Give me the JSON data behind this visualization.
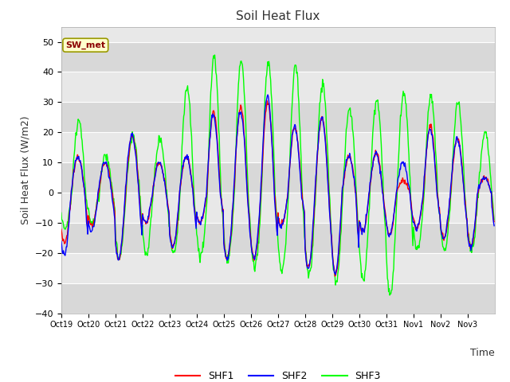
{
  "title": "Soil Heat Flux",
  "ylabel": "Soil Heat Flux (W/m2)",
  "xlabel": "Time",
  "ylim": [
    -40,
    55
  ],
  "yticks": [
    -40,
    -30,
    -20,
    -10,
    0,
    10,
    20,
    30,
    40,
    50
  ],
  "background_color": "#ffffff",
  "plot_bg_color": "#e8e8e8",
  "grid_color": "white",
  "line_colors": {
    "SHF1": "#ff0000",
    "SHF2": "#0000ff",
    "SHF3": "#00ff00"
  },
  "legend_label": "SW_met",
  "xtick_labels": [
    "Oct 19",
    "Oct 20",
    "Oct 21",
    "Oct 22",
    "Oct 23",
    "Oct 24",
    "Oct 25",
    "Oct 26",
    "Oct 27",
    "Oct 28",
    "Oct 29",
    "Oct 30",
    "Oct 31",
    "Nov 1",
    "Nov 2",
    "Nov 3"
  ],
  "n_days": 16,
  "periods_per_day": 48,
  "shf1_amps": [
    12,
    10,
    19,
    10,
    12,
    27,
    28,
    30,
    22,
    25,
    12,
    13,
    4,
    22,
    18,
    5
  ],
  "shf2_amps": [
    12,
    10,
    19,
    10,
    12,
    26,
    27,
    32,
    22,
    25,
    12,
    13,
    10,
    21,
    18,
    5
  ],
  "shf3_amps": [
    24,
    12,
    19,
    18,
    35,
    45,
    44,
    43,
    42,
    36,
    28,
    31,
    33,
    32,
    30,
    20
  ],
  "shf1_night": [
    17,
    11,
    22,
    10,
    18,
    10,
    22,
    22,
    11,
    25,
    27,
    13,
    14,
    12,
    15,
    18
  ],
  "shf2_night": [
    21,
    13,
    22,
    10,
    18,
    10,
    22,
    22,
    11,
    25,
    27,
    13,
    14,
    12,
    15,
    18
  ],
  "shf3_night": [
    12,
    10,
    22,
    20,
    20,
    21,
    22,
    25,
    26,
    27,
    30,
    29,
    34,
    19,
    19,
    19
  ],
  "figsize": [
    6.4,
    4.8
  ],
  "dpi": 100
}
